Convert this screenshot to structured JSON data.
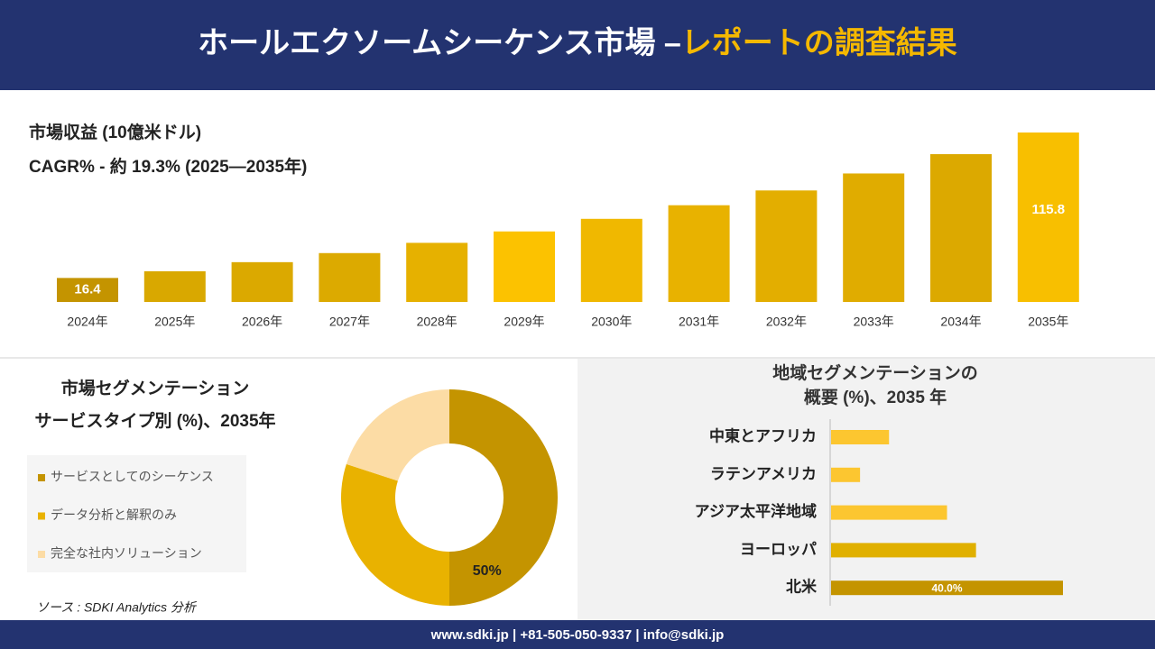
{
  "header": {
    "title": "ホールエクソームシーケンス市場 –",
    "highlight": "レポートの調査結果"
  },
  "chart_data": [
    {
      "type": "bar",
      "title": "市場収益 (10億米ドル)",
      "subtitle": "CAGR% - 約 19.3% (2025—2035年)",
      "categories": [
        "2024年",
        "2025年",
        "2026年",
        "2027年",
        "2028年",
        "2029年",
        "2030年",
        "2031年",
        "2032年",
        "2033年",
        "2034年",
        "2035年"
      ],
      "values": [
        16.4,
        21.0,
        27.2,
        33.4,
        40.4,
        48.2,
        56.8,
        66.1,
        76.2,
        87.8,
        101.0,
        115.8
      ],
      "value_labels": [
        "16.4",
        null,
        null,
        null,
        null,
        null,
        null,
        null,
        null,
        null,
        null,
        "115.8"
      ],
      "colors": [
        "#c49400",
        "#d9a800",
        "#dba900",
        "#dcaa00",
        "#e6b100",
        "#fcc200",
        "#f0b800",
        "#e8b200",
        "#e3ae00",
        "#e0ac00",
        "#dca900",
        "#f8bf00"
      ]
    },
    {
      "type": "pie",
      "title": "市場セグメンテーション",
      "subtitle": "サービスタイプ別 (%)、2035年",
      "categories": [
        "サービスとしてのシーケンス",
        "データ分析と解釈のみ",
        "完全な社内ソリューション"
      ],
      "values": [
        50,
        30,
        20
      ],
      "value_labels": [
        "50%",
        null,
        null
      ],
      "colors": [
        "#c49400",
        "#e9b200",
        "#fcdca5"
      ]
    },
    {
      "type": "hbar",
      "title": "地域セグメンテーションの",
      "subtitle": "概要 (%)、2035 年",
      "categories": [
        "中東とアフリカ",
        "ラテンアメリカ",
        "アジア太平洋地域",
        "ヨーロッパ",
        "北米"
      ],
      "values": [
        10,
        5,
        20,
        25,
        40
      ],
      "value_labels": [
        null,
        null,
        null,
        null,
        "40.0%"
      ],
      "colors": [
        "#fcc630",
        "#fcc630",
        "#fcc630",
        "#e0b000",
        "#c49400"
      ]
    }
  ],
  "source": "ソース : SDKI Analytics 分析",
  "footer": "www.sdki.jp | +81-505-050-9337 | info@sdki.jp"
}
